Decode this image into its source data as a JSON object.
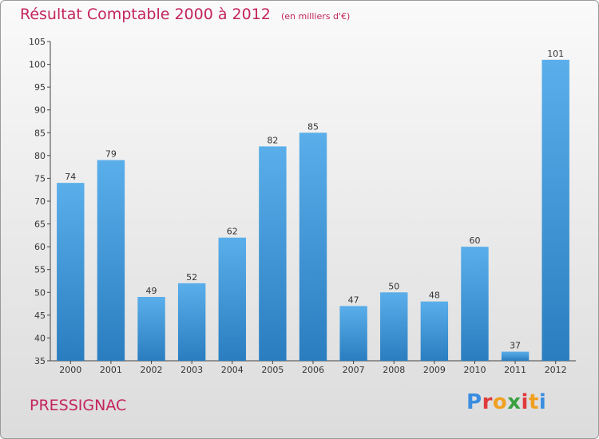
{
  "header": {
    "title": "Résultat Comptable 2000 à 2012",
    "subtitle": "(en milliers d'€)"
  },
  "footer": {
    "commune": "PRESSIGNAC",
    "logo": [
      "P",
      "r",
      "o",
      "x",
      "i",
      "t",
      "i"
    ]
  },
  "colors": {
    "title": "#c4245e",
    "bar_top": "#5aaeea",
    "bar_bottom": "#2a7ec0",
    "logo": [
      "#3a8de0",
      "#e03a3a",
      "#f0a020",
      "#3aa040",
      "#e03a3a",
      "#f0a020",
      "#3a8de0"
    ]
  },
  "chart_data": {
    "type": "bar",
    "categories": [
      "2000",
      "2001",
      "2002",
      "2003",
      "2004",
      "2005",
      "2006",
      "2007",
      "2008",
      "2009",
      "2010",
      "2011",
      "2012"
    ],
    "values": [
      74,
      79,
      49,
      52,
      62,
      82,
      85,
      47,
      50,
      48,
      60,
      37,
      101
    ],
    "ylim": [
      35,
      105
    ],
    "yticks": [
      35,
      40,
      45,
      50,
      55,
      60,
      65,
      70,
      75,
      80,
      85,
      90,
      95,
      100,
      105
    ],
    "grid": false,
    "data_labels": true
  }
}
